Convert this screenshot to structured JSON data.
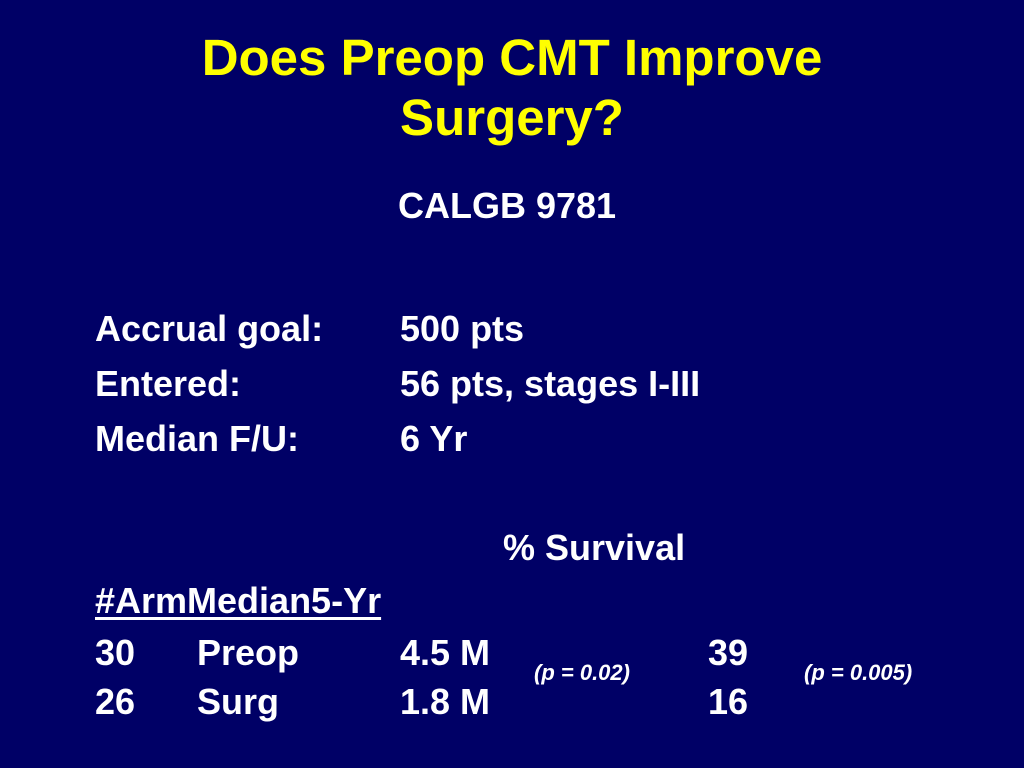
{
  "slide": {
    "title_line1": "Does Preop CMT Improve",
    "title_line2": "Surgery?",
    "subtitle": "CALGB 9781",
    "info": [
      {
        "label": "Accrual goal:",
        "value": "500 pts"
      },
      {
        "label": "Entered:",
        "value": "56 pts, stages I-III"
      },
      {
        "label": "Median F/U:",
        "value": "6 Yr"
      }
    ],
    "survival_header": "% Survival",
    "table_header": "#ArmMedian5-Yr",
    "rows": [
      {
        "n": "30",
        "arm": "Preop",
        "median": "4.5 M",
        "five_yr": "39"
      },
      {
        "n": "26",
        "arm": "Surg",
        "median": "1.8 M",
        "five_yr": "16"
      }
    ],
    "p_median": "(p = 0.02)",
    "p_five_yr": "(p = 0.005)"
  },
  "colors": {
    "background": "#000066",
    "title": "#ffff00",
    "text": "#ffffff"
  }
}
